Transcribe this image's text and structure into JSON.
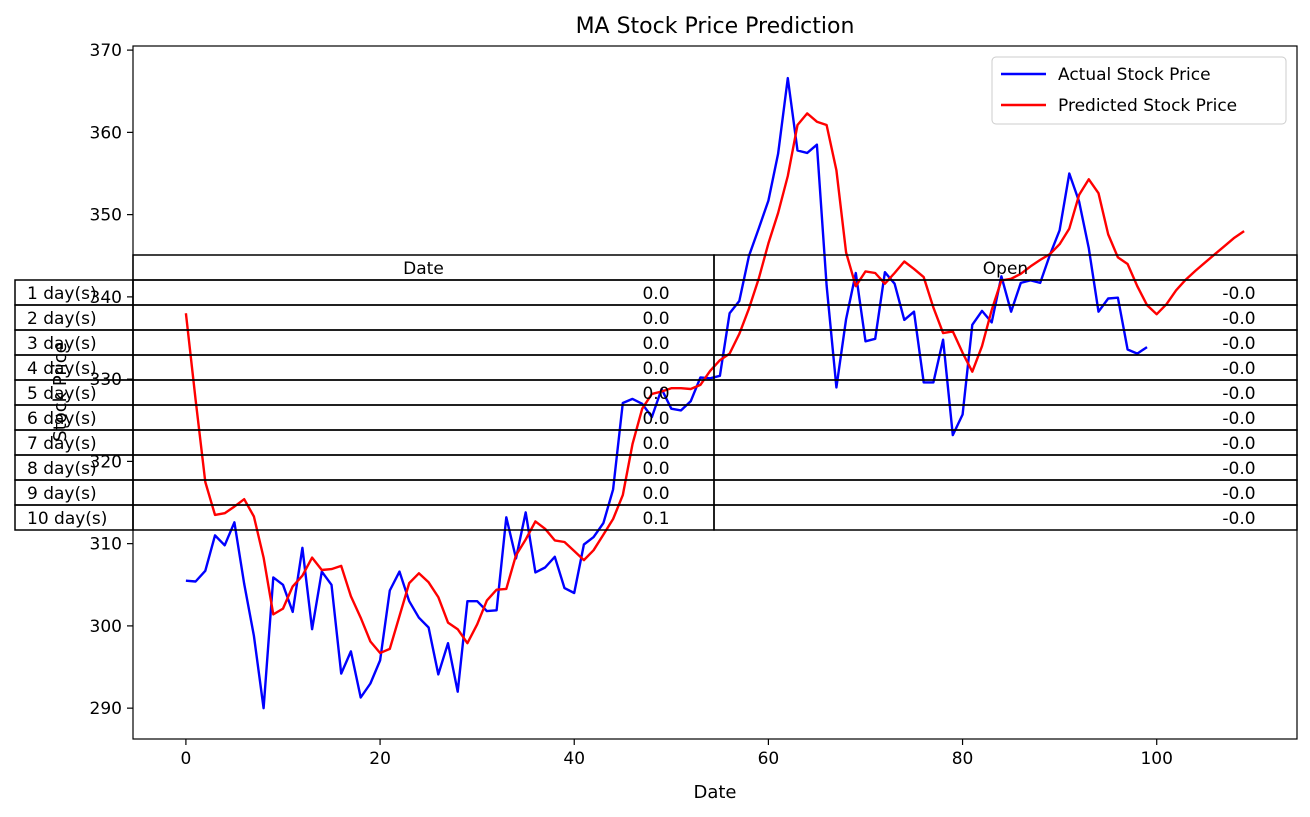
{
  "chart_data": {
    "type": "line",
    "title": "MA Stock Price Prediction",
    "xlabel": "Date",
    "ylabel": "Stock Price",
    "xlim": [
      -5.45,
      114.45
    ],
    "ylim": [
      286.25,
      370.5
    ],
    "xticks": [
      0,
      20,
      40,
      60,
      80,
      100
    ],
    "yticks": [
      290,
      300,
      310,
      320,
      330,
      340,
      350,
      360,
      370
    ],
    "grid": false,
    "legend_position": "upper right",
    "series": [
      {
        "name": "Actual Stock Price",
        "color": "#0000ff",
        "x_start": 0,
        "values": [
          305.5,
          305.4,
          306.7,
          311.0,
          309.8,
          312.6,
          305.1,
          298.8,
          290.0,
          305.9,
          305.0,
          301.7,
          309.5,
          299.6,
          306.6,
          305.0,
          294.2,
          296.9,
          291.3,
          293.0,
          295.8,
          304.3,
          306.6,
          303.0,
          301.0,
          299.8,
          294.1,
          297.9,
          292.0,
          303.0,
          303.0,
          301.8,
          301.9,
          313.2,
          308.2,
          313.8,
          306.5,
          307.1,
          308.4,
          304.6,
          304.0,
          309.9,
          310.8,
          312.5,
          316.6,
          327.1,
          327.6,
          327.0,
          325.4,
          328.8,
          326.4,
          326.2,
          327.3,
          330.2,
          330.1,
          330.4,
          338.0,
          339.5,
          345.0,
          348.3,
          351.7,
          357.4,
          366.6,
          357.8,
          357.5,
          358.5,
          341.4,
          329.0,
          337.3,
          342.9,
          334.6,
          334.9,
          343.0,
          341.6,
          337.2,
          338.2,
          329.6,
          329.6,
          334.8,
          323.2,
          325.7,
          336.6,
          338.3,
          336.9,
          342.5,
          338.2,
          341.7,
          342.0,
          341.7,
          345.1,
          348.1,
          355.0,
          351.6,
          345.9,
          338.2,
          339.8,
          339.9,
          333.6,
          333.1,
          333.9
        ]
      },
      {
        "name": "Predicted Stock Price",
        "color": "#ff0000",
        "x_start": 0,
        "values": [
          338.0,
          327.5,
          317.5,
          313.5,
          313.7,
          314.5,
          315.4,
          313.3,
          308.3,
          301.4,
          302.1,
          304.8,
          306.1,
          308.3,
          306.8,
          306.9,
          307.3,
          303.6,
          301.0,
          298.1,
          296.7,
          297.2,
          301.2,
          305.2,
          306.4,
          305.3,
          303.5,
          300.4,
          299.6,
          297.9,
          300.2,
          303.1,
          304.4,
          304.5,
          308.6,
          310.5,
          312.7,
          311.8,
          310.4,
          310.2,
          309.1,
          308.0,
          309.2,
          311.1,
          313.0,
          315.9,
          322.1,
          326.4,
          328.2,
          328.5,
          328.9,
          328.9,
          328.8,
          329.3,
          331.0,
          332.3,
          333.1,
          335.5,
          338.6,
          342.2,
          346.5,
          350.2,
          354.7,
          360.9,
          362.3,
          361.3,
          360.9,
          355.4,
          345.4,
          341.3,
          343.1,
          342.9,
          341.6,
          342.9,
          344.3,
          343.4,
          342.4,
          338.7,
          335.6,
          335.8,
          333.2,
          330.9,
          334.0,
          338.4,
          342.0,
          342.2,
          342.8,
          343.7,
          344.5,
          345.2,
          346.4,
          348.3,
          352.4,
          354.3,
          352.6,
          347.6,
          344.8,
          344.0,
          341.3,
          339.0,
          337.9,
          339.1,
          340.8,
          342.1,
          343.2,
          344.2,
          345.2,
          346.2,
          347.2,
          348.0
        ]
      }
    ],
    "table": {
      "columns": [
        "Date",
        "Open"
      ],
      "rows": [
        {
          "label": "1 day(s)",
          "cells": [
            "0.0",
            "-0.0"
          ]
        },
        {
          "label": "2 day(s)",
          "cells": [
            "0.0",
            "-0.0"
          ]
        },
        {
          "label": "3 day(s)",
          "cells": [
            "0.0",
            "-0.0"
          ]
        },
        {
          "label": "4 day(s)",
          "cells": [
            "0.0",
            "-0.0"
          ]
        },
        {
          "label": "5 day(s)",
          "cells": [
            "0.0",
            "-0.0"
          ]
        },
        {
          "label": "6 day(s)",
          "cells": [
            "0.0",
            "-0.0"
          ]
        },
        {
          "label": "7 day(s)",
          "cells": [
            "0.0",
            "-0.0"
          ]
        },
        {
          "label": "8 day(s)",
          "cells": [
            "0.0",
            "-0.0"
          ]
        },
        {
          "label": "9 day(s)",
          "cells": [
            "0.0",
            "-0.0"
          ]
        },
        {
          "label": "10 day(s)",
          "cells": [
            "0.1",
            "-0.0"
          ]
        }
      ]
    }
  }
}
